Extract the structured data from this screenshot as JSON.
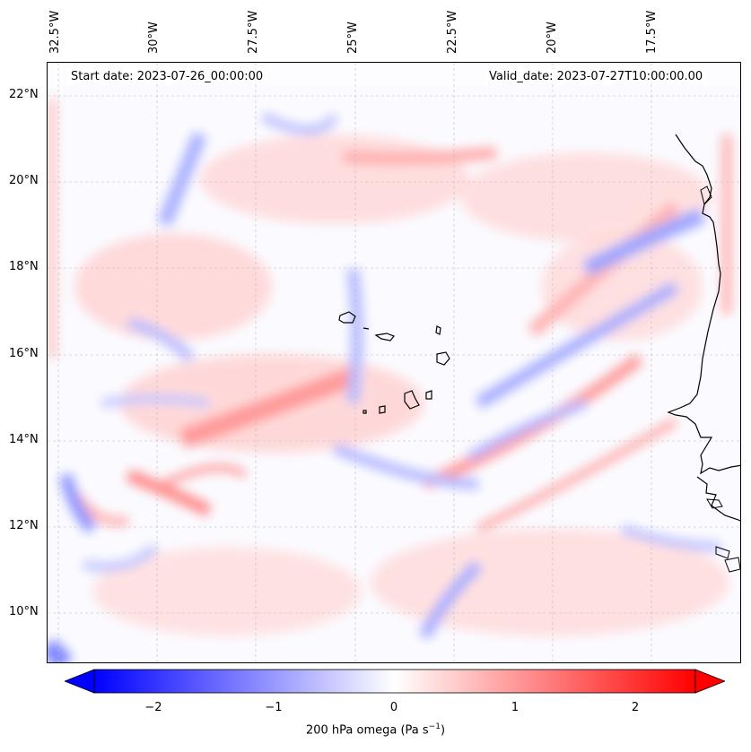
{
  "header": {
    "start_date": "Start date: 2023-07-26_00:00:00",
    "valid_date": "Valid_date: 2023-07-27T10:00:00.00"
  },
  "axes": {
    "lon_labels": [
      "32.5°W",
      "30°W",
      "27.5°W",
      "25°W",
      "22.5°W",
      "20°W",
      "17.5°W"
    ],
    "lat_labels": [
      "22°N",
      "20°N",
      "18°N",
      "16°N",
      "14°N",
      "12°N",
      "10°N"
    ]
  },
  "colorbar": {
    "ticks": [
      "−2",
      "−1",
      "0",
      "1",
      "2"
    ],
    "title": "200 hPa omega (Pa s",
    "title_sup": "−1",
    "title_end": ")",
    "min": -2.6,
    "max": 2.6,
    "negative_color": "#0000ff",
    "positive_color": "#ff0000"
  },
  "map": {
    "projection": "lat-lon",
    "lon_range_deg_w": [
      33.0,
      15.4
    ],
    "lat_range_deg_n": [
      8.8,
      22.8
    ],
    "features": [
      "coastline-west-africa",
      "cape-verde-islands"
    ]
  }
}
